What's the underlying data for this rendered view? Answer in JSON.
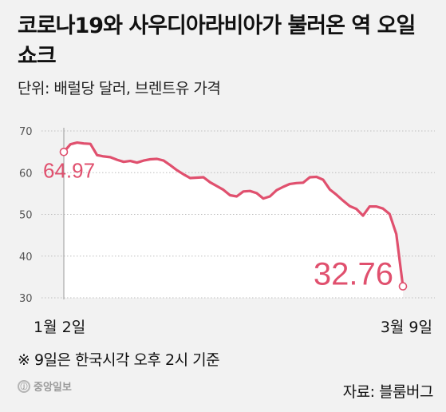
{
  "title": "코로나19와 사우디아라비아가 불러온 역 오일쇼크",
  "unit_label": "단위: 배럴당 달러, 브렌트유 가격",
  "footnote": "※ 9일은 한국시각 오후 2시 기준",
  "source": "자료: 블룸버그",
  "logo_text": "중앙일보",
  "colors": {
    "line": "#e0506e",
    "area": "#ffffff",
    "grid": "#bdbdbd",
    "background": "#f2f2f2"
  },
  "chart_data": {
    "type": "area",
    "title": "코로나19와 사우디아라비아가 불러온 역 오일쇼크",
    "ylabel": "단위: 배럴당 달러, 브렌트유 가격",
    "xlabel": "",
    "ylim": [
      30,
      70
    ],
    "yticks": [
      30,
      40,
      50,
      60,
      70
    ],
    "xtick_labels": [
      "1월 2일",
      "3월 9일"
    ],
    "grid": "horizontal dotted",
    "series": [
      {
        "values": [
          64.97,
          66.8,
          67.2,
          67.0,
          66.9,
          64.2,
          63.9,
          63.7,
          63.1,
          62.6,
          62.8,
          62.4,
          62.9,
          63.2,
          63.3,
          62.9,
          61.8,
          60.6,
          59.6,
          58.7,
          58.8,
          58.9,
          57.7,
          56.8,
          55.9,
          54.6,
          54.3,
          55.5,
          55.6,
          55.1,
          53.8,
          54.3,
          55.8,
          56.6,
          57.3,
          57.5,
          57.6,
          58.9,
          59.0,
          58.3,
          56.0,
          54.7,
          53.3,
          52.0,
          51.3,
          49.7,
          51.9,
          51.9,
          51.4,
          50.1,
          45.3,
          32.76
        ]
      }
    ],
    "annotations": [
      {
        "text": "64.97",
        "target": "first"
      },
      {
        "text": "32.76",
        "target": "last"
      }
    ]
  }
}
